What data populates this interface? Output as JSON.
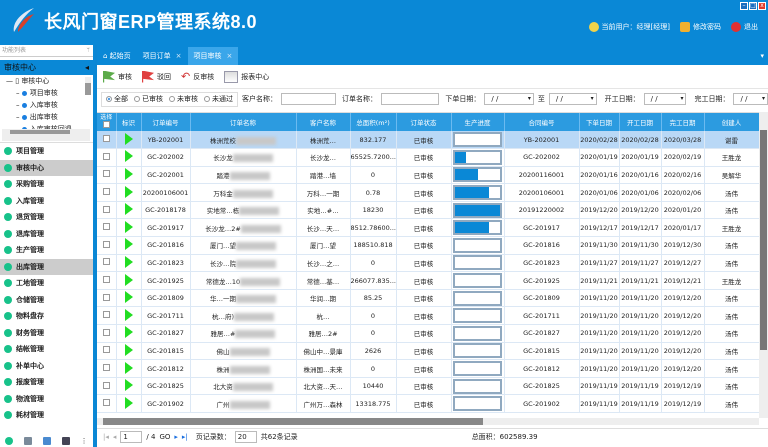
{
  "app": {
    "title": "长风门窗ERP管理系统8.0",
    "user_label": "当前用户：经理[经理]",
    "change_pwd": "修改密码",
    "logout": "退出"
  },
  "sidebar": {
    "search_placeholder": "功能列表",
    "pin": "ᛘ",
    "section": "审核中心",
    "tree_root": "审核中心",
    "tree_items": [
      "项目审核",
      "入库审核",
      "出库审核",
      "入库审核回退"
    ],
    "menu": [
      "项目管理",
      "审核中心",
      "采购管理",
      "入库管理",
      "退货管理",
      "退库管理",
      "生产管理",
      "出库管理",
      "工地管理",
      "仓储管理",
      "物料盘存",
      "财务管理",
      "结帐管理",
      "补单中心",
      "报废管理",
      "物流管理",
      "耗材管理"
    ],
    "active_menu": [
      "审核中心",
      "出库管理"
    ]
  },
  "tabs": [
    {
      "label": "起始页",
      "home": true
    },
    {
      "label": "项目订单",
      "closable": true
    },
    {
      "label": "项目审核",
      "closable": true,
      "active": true
    }
  ],
  "toolbar": {
    "approve": "审核",
    "reject": "驳回",
    "unapprove": "反审核",
    "report": "报表中心"
  },
  "filter": {
    "radios": [
      "全部",
      "已审核",
      "未审核",
      "未通过"
    ],
    "selected": "全部",
    "customer_label": "客户名称：",
    "order_label": "订单名称：",
    "order_date_label": "下单日期：",
    "to_label": "至",
    "start_date_label": "开工日期：",
    "finish_date_label": "完工日期：",
    "date_value": "/  /"
  },
  "table": {
    "columns": [
      "选择",
      "标识",
      "订单编号",
      "订单名称",
      "客户名称",
      "总面积(m²)",
      "订单状态",
      "生产进度",
      "合同编号",
      "下单日期",
      "开工日期",
      "完工日期",
      "创建人"
    ],
    "rows": [
      {
        "no": "YB-202001",
        "name": "株洲荒校",
        "cust": "株洲荒…",
        "area": "832.177",
        "status": "已审核",
        "progress": 0,
        "contract": "YB-202001",
        "d1": "2020/02/28",
        "d2": "2020/02/28",
        "d3": "2020/03/28",
        "creator": "谌雷"
      },
      {
        "no": "GC-202002",
        "name": "长沙龙",
        "cust": "长沙龙…",
        "area": "65525.7200...",
        "status": "已审核",
        "progress": 0.25,
        "contract": "GC-202002",
        "d1": "2020/01/19",
        "d2": "2020/01/19",
        "d3": "2020/02/19",
        "creator": "王胜龙"
      },
      {
        "no": "GC-202001",
        "name": "踏港",
        "cust": "踏港…墙",
        "area": "0",
        "status": "已审核",
        "progress": 0.5,
        "contract": "20200116001",
        "d1": "2020/01/16",
        "d2": "2020/01/16",
        "d3": "2020/02/16",
        "creator": "吴解华"
      },
      {
        "no": "20200106001",
        "name": "万科金",
        "cust": "万科…一期",
        "area": "0.78",
        "status": "已审核",
        "progress": 0.75,
        "contract": "20200106001",
        "d1": "2020/01/06",
        "d2": "2020/01/06",
        "d3": "2020/02/06",
        "creator": "汤伟"
      },
      {
        "no": "GC-2018178",
        "name": "实地常…栋",
        "cust": "实地…#…",
        "area": "18230",
        "status": "已审核",
        "progress": 1,
        "contract": "20191220002",
        "d1": "2019/12/20",
        "d2": "2019/12/20",
        "d3": "2020/01/20",
        "creator": "汤伟"
      },
      {
        "no": "GC-201917",
        "name": "长沙龙…2#",
        "cust": "长沙…天…",
        "area": "8512.78600...",
        "status": "已审核",
        "progress": 0.75,
        "contract": "GC-201917",
        "d1": "2019/12/17",
        "d2": "2019/12/17",
        "d3": "2020/01/17",
        "creator": "王胜龙"
      },
      {
        "no": "GC-201816",
        "name": "厦门…望",
        "cust": "厦门…望",
        "area": "188510.818",
        "status": "已审核",
        "progress": 0,
        "contract": "GC-201816",
        "d1": "2019/11/30",
        "d2": "2019/11/30",
        "d3": "2019/12/30",
        "creator": "汤伟"
      },
      {
        "no": "GC-201823",
        "name": "长沙…院",
        "cust": "长沙…之…",
        "area": "0",
        "status": "已审核",
        "progress": 0,
        "contract": "GC-201823",
        "d1": "2019/11/27",
        "d2": "2019/11/27",
        "d3": "2019/12/27",
        "creator": "汤伟"
      },
      {
        "no": "GC-201925",
        "name": "常德龙…10",
        "cust": "常德…基…",
        "area": "266077.835...",
        "status": "已审核",
        "progress": 0,
        "contract": "GC-201925",
        "d1": "2019/11/21",
        "d2": "2019/11/21",
        "d3": "2019/12/21",
        "creator": "王胜龙"
      },
      {
        "no": "GC-201809",
        "name": "华…一期",
        "cust": "华润…期",
        "area": "85.25",
        "status": "已审核",
        "progress": 0,
        "contract": "GC-201809",
        "d1": "2019/11/20",
        "d2": "2019/11/20",
        "d3": "2019/12/20",
        "creator": "汤伟"
      },
      {
        "no": "GC-201711",
        "name": "杭…府)",
        "cust": "杭…",
        "area": "0",
        "status": "已审核",
        "progress": 0,
        "contract": "GC-201711",
        "d1": "2019/11/20",
        "d2": "2019/11/20",
        "d3": "2019/12/20",
        "creator": "汤伟"
      },
      {
        "no": "GC-201827",
        "name": "雅居…#",
        "cust": "雅居…2#",
        "area": "0",
        "status": "已审核",
        "progress": 0,
        "contract": "GC-201827",
        "d1": "2019/11/20",
        "d2": "2019/11/20",
        "d3": "2019/12/20",
        "creator": "汤伟"
      },
      {
        "no": "GC-201815",
        "name": "佛山",
        "cust": "佛山中…景庫",
        "area": "2626",
        "status": "已审核",
        "progress": 0,
        "contract": "GC-201815",
        "d1": "2019/11/20",
        "d2": "2019/11/20",
        "d3": "2019/12/20",
        "creator": "汤伟"
      },
      {
        "no": "GC-201812",
        "name": "株洲",
        "cust": "株洲国…未来",
        "area": "0",
        "status": "已审核",
        "progress": 0,
        "contract": "GC-201812",
        "d1": "2019/11/20",
        "d2": "2019/11/20",
        "d3": "2019/12/20",
        "creator": "汤伟"
      },
      {
        "no": "GC-201825",
        "name": "北大资",
        "cust": "北大资…天…",
        "area": "10440",
        "status": "已审核",
        "progress": 0,
        "contract": "GC-201825",
        "d1": "2019/11/19",
        "d2": "2019/11/19",
        "d3": "2019/12/19",
        "creator": "汤伟"
      },
      {
        "no": "GC-201902",
        "name": "广州",
        "cust": "广州万…森林",
        "area": "13318.775",
        "status": "已审核",
        "progress": 0,
        "contract": "GC-201902",
        "d1": "2019/11/19",
        "d2": "2019/11/19",
        "d3": "2019/12/19",
        "creator": "汤伟"
      }
    ]
  },
  "pager": {
    "page": "1",
    "total_pages": "/ 4",
    "page_size_label": "页记录数：",
    "page_size": "20",
    "total_records": "共62条记录",
    "total_area": "总面积：602589.39"
  },
  "colors": {
    "brand": "#0a88d6",
    "header": "#2c9be0",
    "progress": "#0a88d6",
    "play": "#22dd22",
    "selected_row": "#b9d8f6"
  }
}
